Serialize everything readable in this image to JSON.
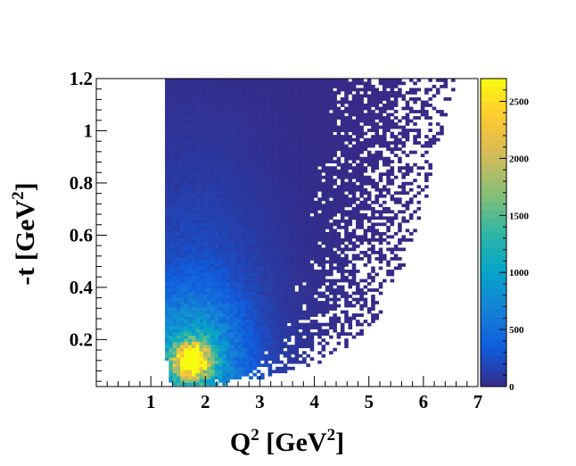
{
  "chart_data": {
    "type": "heatmap",
    "title": "",
    "xlabel": {
      "base": "Q",
      "sup": "2",
      "mid": " [GeV",
      "sup2": "2",
      "end": "]"
    },
    "ylabel": {
      "base": "-t [GeV",
      "sup": "2",
      "end": "]"
    },
    "xlim": [
      0,
      7
    ],
    "ylim": [
      0.02,
      1.2
    ],
    "x_tick_labels": [
      "1",
      "2",
      "3",
      "4",
      "5",
      "6",
      "7"
    ],
    "y_tick_labels": [
      "0.2",
      "0.4",
      "0.6",
      "0.8",
      "1",
      "1.2"
    ],
    "colorbar": {
      "zlim": [
        0,
        2700
      ],
      "tick_labels": [
        "0",
        "500",
        "1000",
        "1500",
        "2000",
        "2500"
      ],
      "palette": [
        "#352a87",
        "#0f5cdd",
        "#1481d6",
        "#06a4ca",
        "#2eb7a4",
        "#87bf77",
        "#d1bb59",
        "#fec832",
        "#f9fb0e"
      ]
    },
    "bins": {
      "x_min": 0,
      "x_max": 7,
      "nx": 100,
      "y_min": 0,
      "y_max": 1.2,
      "ny": 100
    },
    "distribution": {
      "peak_q2": 1.75,
      "peak_t": 0.12,
      "peak_count": 2600,
      "q2_lower_edge_points": [
        [
          0.02,
          1.5
        ],
        [
          0.04,
          1.35
        ],
        [
          0.1,
          1.3
        ],
        [
          0.3,
          1.25
        ],
        [
          1.2,
          1.25
        ]
      ],
      "q2_upper_edge_points": [
        [
          0.02,
          2.1
        ],
        [
          0.05,
          3.0
        ],
        [
          0.1,
          4.0
        ],
        [
          0.2,
          4.9
        ],
        [
          0.4,
          5.5
        ],
        [
          0.7,
          6.0
        ],
        [
          1.2,
          6.6
        ]
      ]
    }
  }
}
